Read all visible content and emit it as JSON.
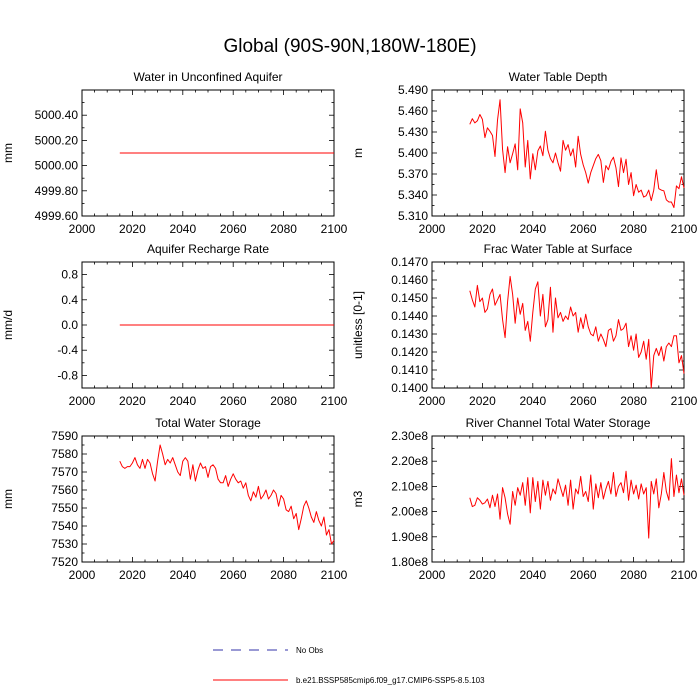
{
  "page_title": "Global (90S-90N,180W-180E)",
  "legend": {
    "entries": [
      {
        "label": "No Obs",
        "style": "dashed",
        "color": "#3333aa"
      },
      {
        "label": "b.e21.BSSP585cmip6.f09_g17.CMIP6-SSP5-8.5.103",
        "style": "solid",
        "color": "#ff0000"
      }
    ]
  },
  "chart_data": [
    {
      "type": "line",
      "title": "Water in Unconfined Aquifer",
      "ylabel": "mm",
      "xlim": [
        2000,
        2100
      ],
      "ylim": [
        4999.6,
        5000.6
      ],
      "xticks": [
        2000,
        2020,
        2040,
        2060,
        2080,
        2100
      ],
      "yticks": [
        4999.6,
        4999.8,
        5000.0,
        5000.2,
        5000.4
      ],
      "ytick_labels": [
        "4999.60",
        "4999.80",
        "5000.00",
        "5000.20",
        "5000.40"
      ],
      "series": [
        {
          "name": "b.e21.BSSP585cmip6.f09_g17.CMIP6-SSP5-8.5.103",
          "color": "#ff0000",
          "x_start": 2015,
          "x_end": 2100,
          "values": [
            5000.1,
            5000.1
          ]
        }
      ]
    },
    {
      "type": "line",
      "title": "Water Table Depth",
      "ylabel": "m",
      "xlim": [
        2000,
        2100
      ],
      "ylim": [
        5.31,
        5.49
      ],
      "xticks": [
        2000,
        2020,
        2040,
        2060,
        2080,
        2100
      ],
      "yticks": [
        5.31,
        5.34,
        5.37,
        5.4,
        5.43,
        5.46,
        5.49
      ],
      "ytick_labels": [
        "5.310",
        "5.340",
        "5.370",
        "5.400",
        "5.430",
        "5.460",
        "5.490"
      ],
      "series": [
        {
          "name": "b.e21.BSSP585cmip6.f09_g17.CMIP6-SSP5-8.5.103",
          "color": "#ff0000",
          "x_start": 2015,
          "x_end": 2100,
          "values": [
            5.441,
            5.449,
            5.443,
            5.446,
            5.455,
            5.448,
            5.422,
            5.436,
            5.431,
            5.425,
            5.395,
            5.447,
            5.476,
            5.405,
            5.372,
            5.409,
            5.386,
            5.399,
            5.413,
            5.376,
            5.463,
            5.443,
            5.38,
            5.418,
            5.363,
            5.399,
            5.376,
            5.403,
            5.41,
            5.396,
            5.431,
            5.404,
            5.392,
            5.386,
            5.4,
            5.386,
            5.374,
            5.418,
            5.404,
            5.412,
            5.396,
            5.406,
            5.38,
            5.424,
            5.398,
            5.383,
            5.372,
            5.357,
            5.372,
            5.382,
            5.392,
            5.398,
            5.389,
            5.358,
            5.382,
            5.376,
            5.388,
            5.394,
            5.379,
            5.352,
            5.393,
            5.372,
            5.391,
            5.355,
            5.372,
            5.339,
            5.355,
            5.344,
            5.347,
            5.337,
            5.339,
            5.347,
            5.332,
            5.347,
            5.376,
            5.349,
            5.347,
            5.346,
            5.333,
            5.33,
            5.33,
            5.322,
            5.353,
            5.349,
            5.366,
            5.35
          ]
        }
      ]
    },
    {
      "type": "line",
      "title": "Aquifer Recharge Rate",
      "ylabel": "mm/d",
      "xlim": [
        2000,
        2100
      ],
      "ylim": [
        -1.0,
        1.0
      ],
      "xticks": [
        2000,
        2020,
        2040,
        2060,
        2080,
        2100
      ],
      "yticks": [
        -0.8,
        -0.4,
        0.0,
        0.4,
        0.8
      ],
      "ytick_labels": [
        "-0.8",
        "-0.4",
        "0.0",
        "0.4",
        "0.8"
      ],
      "series": [
        {
          "name": "b.e21.BSSP585cmip6.f09_g17.CMIP6-SSP5-8.5.103",
          "color": "#ff0000",
          "x_start": 2015,
          "x_end": 2100,
          "values": [
            0.0,
            0.0
          ]
        }
      ]
    },
    {
      "type": "line",
      "title": "Frac Water Table at Surface",
      "ylabel": "unitless [0-1]",
      "xlim": [
        2000,
        2100
      ],
      "ylim": [
        0.14,
        0.147
      ],
      "xticks": [
        2000,
        2020,
        2040,
        2060,
        2080,
        2100
      ],
      "yticks": [
        0.14,
        0.141,
        0.142,
        0.143,
        0.144,
        0.145,
        0.146,
        0.147
      ],
      "ytick_labels": [
        "0.1400",
        "0.1410",
        "0.1420",
        "0.1430",
        "0.1440",
        "0.1450",
        "0.1460",
        "0.1470"
      ],
      "series": [
        {
          "name": "b.e21.BSSP585cmip6.f09_g17.CMIP6-SSP5-8.5.103",
          "color": "#ff0000",
          "x_start": 2015,
          "x_end": 2100,
          "values": [
            0.1454,
            0.1449,
            0.1445,
            0.1457,
            0.1448,
            0.145,
            0.1442,
            0.1444,
            0.1452,
            0.1455,
            0.1446,
            0.1449,
            0.1452,
            0.1438,
            0.1428,
            0.1448,
            0.1462,
            0.1452,
            0.1436,
            0.145,
            0.1441,
            0.1447,
            0.1432,
            0.1437,
            0.1426,
            0.1442,
            0.1455,
            0.1459,
            0.144,
            0.1452,
            0.1434,
            0.1438,
            0.1456,
            0.1431,
            0.145,
            0.1439,
            0.1442,
            0.1437,
            0.144,
            0.1438,
            0.1445,
            0.144,
            0.1442,
            0.1431,
            0.1439,
            0.1433,
            0.1441,
            0.1434,
            0.143,
            0.1429,
            0.1434,
            0.1426,
            0.143,
            0.1427,
            0.1423,
            0.1432,
            0.1433,
            0.1426,
            0.1429,
            0.1438,
            0.1432,
            0.1433,
            0.1436,
            0.1423,
            0.1429,
            0.1421,
            0.143,
            0.1417,
            0.142,
            0.1426,
            0.1416,
            0.1427,
            0.14,
            0.1418,
            0.1422,
            0.1418,
            0.1423,
            0.1415,
            0.1423,
            0.1425,
            0.1423,
            0.1429,
            0.1429,
            0.1414,
            0.1418,
            0.1408
          ]
        }
      ]
    },
    {
      "type": "line",
      "title": "Total Water Storage",
      "ylabel": "mm",
      "xlim": [
        2000,
        2100
      ],
      "ylim": [
        7520,
        7590
      ],
      "xticks": [
        2000,
        2020,
        2040,
        2060,
        2080,
        2100
      ],
      "yticks": [
        7520,
        7530,
        7540,
        7550,
        7560,
        7570,
        7580,
        7590
      ],
      "ytick_labels": [
        "7520",
        "7530",
        "7540",
        "7550",
        "7560",
        "7570",
        "7580",
        "7590"
      ],
      "series": [
        {
          "name": "b.e21.BSSP585cmip6.f09_g17.CMIP6-SSP5-8.5.103",
          "color": "#ff0000",
          "x_start": 2015,
          "x_end": 2100,
          "values": [
            7576,
            7573,
            7572,
            7573,
            7573,
            7575,
            7578,
            7574,
            7572,
            7577,
            7572,
            7577,
            7575,
            7569,
            7565,
            7576,
            7585,
            7580,
            7574,
            7577,
            7575,
            7578,
            7574,
            7570,
            7568,
            7576,
            7578,
            7576,
            7566,
            7574,
            7565,
            7571,
            7575,
            7572,
            7573,
            7567,
            7573,
            7574,
            7572,
            7566,
            7564,
            7564,
            7568,
            7562,
            7566,
            7569,
            7566,
            7564,
            7565,
            7561,
            7564,
            7557,
            7554,
            7559,
            7556,
            7562,
            7555,
            7557,
            7560,
            7555,
            7557,
            7560,
            7558,
            7551,
            7557,
            7555,
            7549,
            7548,
            7551,
            7544,
            7547,
            7538,
            7544,
            7551,
            7554,
            7550,
            7545,
            7542,
            7548,
            7543,
            7540,
            7545,
            7535,
            7538,
            7530,
            7532
          ]
        }
      ]
    },
    {
      "type": "line",
      "title": "River Channel Total Water Storage",
      "ylabel": "m3",
      "xlim": [
        2000,
        2100
      ],
      "ylim": [
        180000000,
        230000000
      ],
      "xticks": [
        2000,
        2020,
        2040,
        2060,
        2080,
        2100
      ],
      "yticks": [
        180000000,
        190000000,
        200000000,
        210000000,
        220000000,
        230000000
      ],
      "ytick_labels": [
        "1.80e8",
        "1.90e8",
        "2.00e8",
        "2.10e8",
        "2.20e8",
        "2.30e8"
      ],
      "series": [
        {
          "name": "b.e21.BSSP585cmip6.f09_g17.CMIP6-SSP5-8.5.103",
          "color": "#ff0000",
          "x_start": 2015,
          "x_end": 2100,
          "values": [
            205500000,
            202000000,
            202500000,
            205500000,
            204500000,
            203000000,
            203500000,
            205000000,
            201500000,
            206500000,
            202000000,
            207000000,
            197000000,
            209500000,
            205500000,
            199000000,
            195000000,
            208000000,
            202500000,
            209500000,
            206500000,
            211500000,
            202500000,
            213500000,
            199500000,
            213500000,
            204000000,
            212000000,
            201000000,
            212500000,
            206500000,
            212000000,
            204500000,
            209000000,
            207000000,
            213000000,
            209500000,
            206000000,
            210500000,
            202500000,
            212500000,
            201000000,
            209000000,
            207000000,
            214000000,
            206000000,
            208000000,
            204000000,
            214500000,
            201000000,
            211000000,
            205500000,
            211500000,
            205000000,
            209000000,
            212000000,
            207000000,
            215500000,
            206000000,
            210000000,
            211500000,
            207500000,
            216000000,
            204500000,
            212500000,
            207000000,
            210500000,
            205000000,
            211000000,
            207000000,
            209500000,
            189500000,
            212000000,
            207000000,
            213000000,
            201500000,
            207000000,
            215500000,
            208000000,
            204500000,
            221000000,
            206000000,
            214500000,
            207500000,
            213000000,
            206500000
          ]
        }
      ]
    }
  ]
}
